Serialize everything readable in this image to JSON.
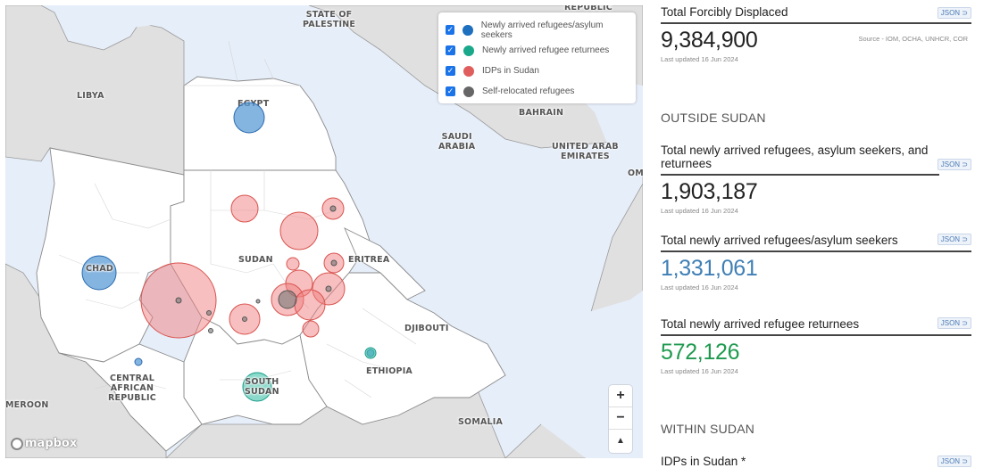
{
  "map": {
    "legend": [
      {
        "label": "Newly arrived refugees/asylum seekers",
        "color": "#1f6fbf",
        "checked": true
      },
      {
        "label": "Newly arrived refugee returnees",
        "color": "#1aa88a",
        "checked": true
      },
      {
        "label": "IDPs in Sudan",
        "color": "#e05d5d",
        "checked": true
      },
      {
        "label": "Self-relocated refugees",
        "color": "#666666",
        "checked": true
      }
    ],
    "country_labels": {
      "state_of_palestine": "STATE OF\nPALESTINE",
      "republic": "REPUBLIC",
      "libya": "LIBYA",
      "egypt": "EGYPT",
      "bahrain": "BAHRAIN",
      "saudi_arabia": "SAUDI\nARABIA",
      "uae": "UNITED ARAB\nEMIRATES",
      "oman": "OMA",
      "chad": "CHAD",
      "sudan": "SUDAN",
      "eritrea": "ERITREA",
      "djibouti": "DJIBOUTI",
      "ethiopia": "ETHIOPIA",
      "car": "CENTRAL\nAFRICAN\nREPUBLIC",
      "south_sudan": "SOUTH\nSUDAN",
      "cameroon": "MEROON",
      "somalia": "SOMALIA"
    },
    "zoom_in": "+",
    "zoom_out": "−",
    "compass": "▲",
    "attribution": "mapbox",
    "colors": {
      "refugees": "#5b9bd5",
      "returnees": "#3cc0a8",
      "idps": "#f08080",
      "self_relocated": "#777777"
    }
  },
  "panel": {
    "total": {
      "title": "Total Forcibly Displaced",
      "value": "9,384,900",
      "updated": "Last updated 16 Jun 2024",
      "source": "Source - IOM, OCHA, UNHCR, COR",
      "json_label": "JSON ⊃"
    },
    "outside_heading": "OUTSIDE SUDAN",
    "outside_total": {
      "title": "Total newly arrived refugees, asylum seekers, and returnees",
      "value": "1,903,187",
      "updated": "Last updated 16 Jun 2024",
      "json_label": "JSON ⊃"
    },
    "refugees": {
      "title": "Total newly arrived refugees/asylum seekers",
      "value": "1,331,061",
      "updated": "Last updated 16 Jun 2024",
      "json_label": "JSON ⊃",
      "value_color": "#3f7fb5"
    },
    "returnees": {
      "title": "Total newly arrived refugee returnees",
      "value": "572,126",
      "updated": "Last updated 16 Jun 2024",
      "json_label": "JSON ⊃",
      "value_color": "#1e9a4f"
    },
    "within_heading": "WITHIN SUDAN",
    "idps": {
      "title": "IDPs in Sudan *",
      "json_label": "JSON ⊃"
    }
  }
}
